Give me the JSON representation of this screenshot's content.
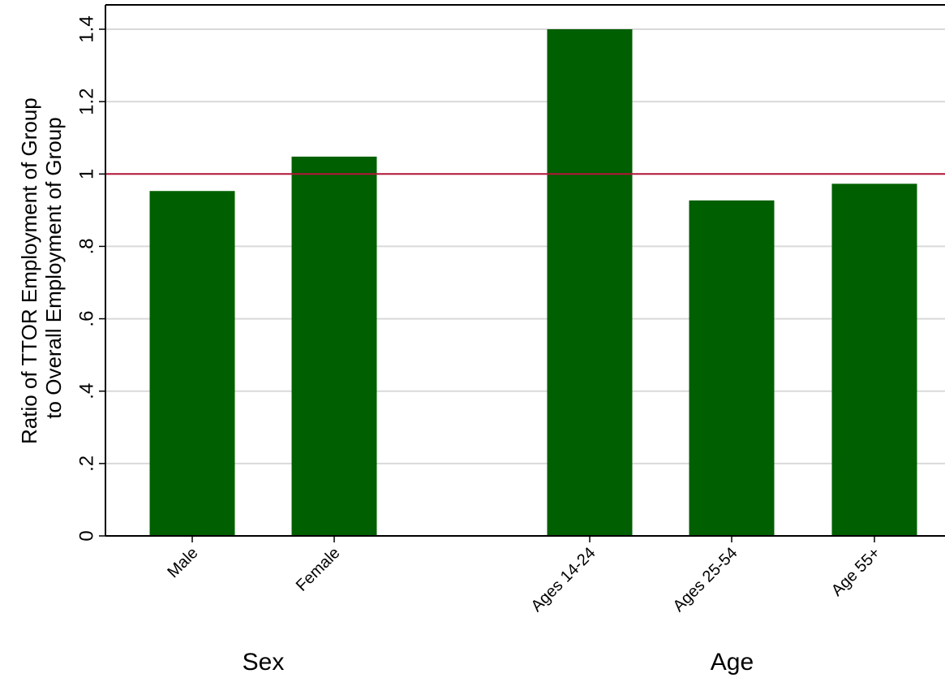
{
  "chart_data": {
    "type": "bar",
    "ylabel_lines": [
      "Ratio of TTOR Employment of Group",
      "to Overall Employment of Group"
    ],
    "ylim": [
      0,
      1.4
    ],
    "yticks": [
      {
        "value": 0,
        "label": "0"
      },
      {
        "value": 0.2,
        "label": ".2"
      },
      {
        "value": 0.4,
        "label": ".4"
      },
      {
        "value": 0.6,
        "label": ".6"
      },
      {
        "value": 0.8,
        "label": ".8"
      },
      {
        "value": 1.0,
        "label": "1"
      },
      {
        "value": 1.2,
        "label": "1.2"
      },
      {
        "value": 1.4,
        "label": "1.4"
      }
    ],
    "grid": true,
    "reference_line": {
      "value": 1.0,
      "color": "#b5163a"
    },
    "bar_color": "#005f00",
    "groups": [
      {
        "label": "Sex",
        "categories": [
          "Male",
          "Female"
        ],
        "values": [
          0.953,
          1.048
        ]
      },
      {
        "label": "Age",
        "categories": [
          "Ages 14-24",
          "Ages 25-54",
          "Age 55+"
        ],
        "values": [
          1.4,
          0.927,
          0.973
        ]
      }
    ]
  }
}
